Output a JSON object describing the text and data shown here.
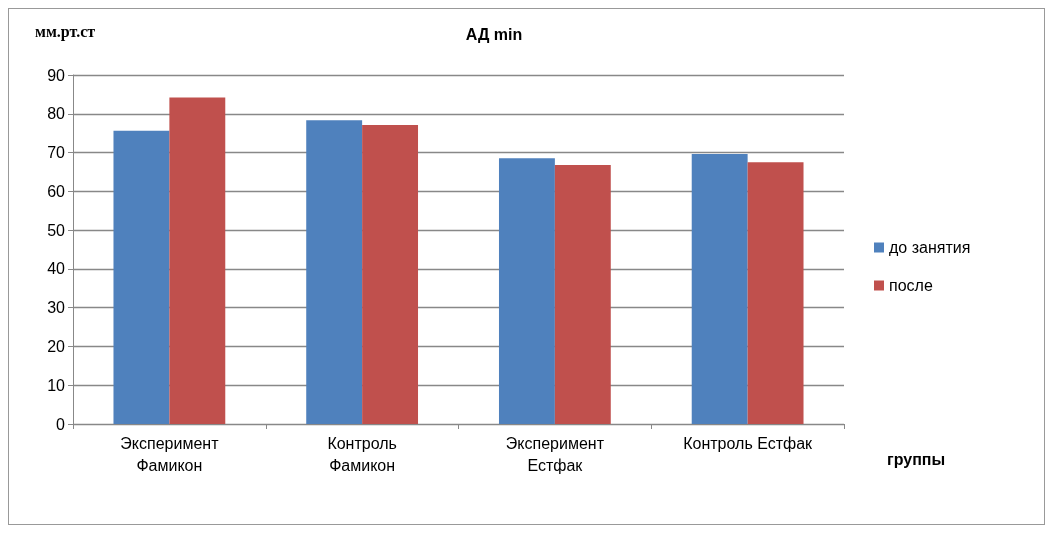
{
  "chart_data": {
    "type": "bar",
    "title": "АД min",
    "ylabel": "мм.рт.ст",
    "xlabel": "группы",
    "categories": [
      "Эксперимент\nФамикон",
      "Контроль\nФамикон",
      "Эксперимент\nЕстфак",
      "Контроль Естфак"
    ],
    "series": [
      {
        "name": "до занятия",
        "color": "#4f81bd",
        "values": [
          75.6,
          78.3,
          68.5,
          69.6
        ]
      },
      {
        "name": "после",
        "color": "#c0504d",
        "values": [
          84.2,
          77.1,
          66.8,
          67.5
        ]
      }
    ],
    "ylim": [
      0,
      90
    ],
    "yticks": [
      0,
      10,
      20,
      30,
      40,
      50,
      60,
      70,
      80,
      90
    ],
    "grid": "y",
    "legend": "right"
  }
}
